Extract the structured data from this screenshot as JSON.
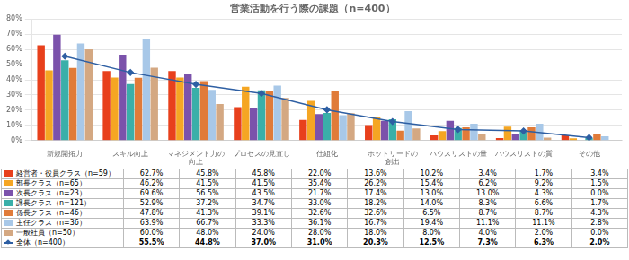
{
  "chart_data": {
    "type": "bar",
    "title": "営業活動を行う際の課題（n=400）",
    "categories": [
      "新規開拓力",
      "スキル向上",
      "マネジメント力の\n向上",
      "プロセスの見直し",
      "仕組化",
      "ホットリードの\n創出",
      "ハウスリストの量",
      "ハウスリストの質",
      "その他"
    ],
    "series": [
      {
        "name": "経営者・役員クラス（n=59）",
        "color": "#E8401C",
        "values": [
          62.7,
          45.8,
          45.8,
          22.0,
          13.6,
          10.2,
          3.4,
          1.7,
          3.4
        ],
        "value_labels": [
          "62.7%",
          "45.8%",
          "45.8%",
          "22.0%",
          "13.6%",
          "10.2%",
          "3.4%",
          "1.7%",
          "3.4%"
        ]
      },
      {
        "name": "部長クラス（n=65）",
        "color": "#F5A623",
        "values": [
          46.2,
          41.5,
          41.5,
          35.4,
          26.2,
          15.4,
          6.2,
          9.2,
          1.5
        ],
        "value_labels": [
          "46.2%",
          "41.5%",
          "41.5%",
          "35.4%",
          "26.2%",
          "15.4%",
          "6.2%",
          "9.2%",
          "1.5%"
        ]
      },
      {
        "name": "次長クラス（n=23）",
        "color": "#7B52AB",
        "values": [
          69.6,
          56.5,
          43.5,
          21.7,
          17.4,
          13.0,
          13.0,
          4.3,
          0.0
        ],
        "value_labels": [
          "69.6%",
          "56.5%",
          "43.5%",
          "21.7%",
          "17.4%",
          "13.0%",
          "13.0%",
          "4.3%",
          "0.0%"
        ]
      },
      {
        "name": "課長クラス（n=121）",
        "color": "#3AAFA9",
        "values": [
          52.9,
          37.2,
          34.7,
          33.0,
          18.2,
          14.0,
          8.3,
          6.6,
          1.7
        ],
        "value_labels": [
          "52.9%",
          "37.2%",
          "34.7%",
          "33.0%",
          "18.2%",
          "14.0%",
          "8.3%",
          "6.6%",
          "1.7%"
        ]
      },
      {
        "name": "係長クラス（n=46）",
        "color": "#E07B39",
        "values": [
          47.8,
          41.3,
          39.1,
          32.6,
          32.6,
          6.5,
          8.7,
          8.7,
          4.3
        ],
        "value_labels": [
          "47.8%",
          "41.3%",
          "39.1%",
          "32.6%",
          "32.6%",
          "6.5%",
          "8.7%",
          "8.7%",
          "4.3%"
        ]
      },
      {
        "name": "主任クラス（n=36）",
        "color": "#A8C8E8",
        "values": [
          63.9,
          66.7,
          33.3,
          36.1,
          16.7,
          19.4,
          11.1,
          11.1,
          2.8
        ],
        "value_labels": [
          "63.9%",
          "66.7%",
          "33.3%",
          "36.1%",
          "16.7%",
          "19.4%",
          "11.1%",
          "11.1%",
          "2.8%"
        ]
      },
      {
        "name": "一般社員（n=50）",
        "color": "#D4A882",
        "values": [
          60.0,
          48.0,
          24.0,
          28.0,
          18.0,
          8.0,
          4.0,
          2.0,
          0.0
        ],
        "value_labels": [
          "60.0%",
          "48.0%",
          "24.0%",
          "28.0%",
          "18.0%",
          "8.0%",
          "4.0%",
          "2.0%",
          "0.0%"
        ]
      },
      {
        "name": "全体（n=400）",
        "color": "#2E5FA3",
        "type": "line",
        "marker": "diamond",
        "values": [
          55.5,
          44.8,
          37.0,
          31.0,
          20.3,
          12.5,
          7.3,
          6.3,
          2.0
        ],
        "value_labels": [
          "55.5%",
          "44.8%",
          "37.0%",
          "31.0%",
          "20.3%",
          "12.5%",
          "7.3%",
          "6.3%",
          "2.0%"
        ]
      }
    ],
    "ylim": [
      0,
      80
    ],
    "yticks": [
      {
        "value": 0,
        "label": "0%"
      },
      {
        "value": 10,
        "label": "10%"
      },
      {
        "value": 20,
        "label": "20%"
      },
      {
        "value": 30,
        "label": "30%"
      },
      {
        "value": 40,
        "label": "40%"
      },
      {
        "value": 50,
        "label": "50%"
      },
      {
        "value": 60,
        "label": "60%"
      },
      {
        "value": 70,
        "label": "70%"
      },
      {
        "value": 80,
        "label": "80%"
      }
    ],
    "grid": true,
    "legend": "bottom",
    "data_labels": true
  }
}
